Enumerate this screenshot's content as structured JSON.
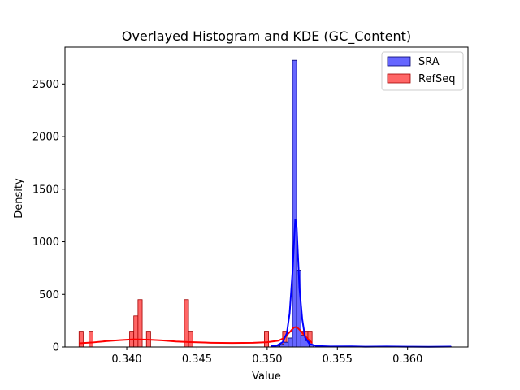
{
  "chart_data": {
    "type": "histogram",
    "title": "Overlayed Histogram and KDE (GC_Content)",
    "xlabel": "Value",
    "ylabel": "Density",
    "xlim": [
      0.3356,
      0.3643
    ],
    "ylim": [
      0,
      2850
    ],
    "x_ticks": [
      0.34,
      0.345,
      0.35,
      0.355,
      0.36
    ],
    "x_tick_labels": [
      "0.340",
      "0.345",
      "0.350",
      "0.355",
      "0.360"
    ],
    "y_ticks": [
      0,
      500,
      1000,
      1500,
      2000,
      2500
    ],
    "y_tick_labels": [
      "0",
      "500",
      "1000",
      "1500",
      "2000",
      "2500"
    ],
    "grid": false,
    "legend_position": "top-right",
    "series": [
      {
        "name": "SRA",
        "fill_color": "#6666ff",
        "edge_color": "#00006e",
        "kde_color": "#0000ff",
        "bins": [
          {
            "x0": 0.3503,
            "x1": 0.3506,
            "height": 20
          },
          {
            "x0": 0.3506,
            "x1": 0.3509,
            "height": 10
          },
          {
            "x0": 0.3509,
            "x1": 0.3512,
            "height": 25
          },
          {
            "x0": 0.3512,
            "x1": 0.3515,
            "height": 45
          },
          {
            "x0": 0.3515,
            "x1": 0.3518,
            "height": 85
          },
          {
            "x0": 0.3518,
            "x1": 0.3521,
            "height": 2725
          },
          {
            "x0": 0.3521,
            "x1": 0.3524,
            "height": 730
          },
          {
            "x0": 0.3524,
            "x1": 0.3527,
            "height": 110
          },
          {
            "x0": 0.3527,
            "x1": 0.353,
            "height": 60
          },
          {
            "x0": 0.353,
            "x1": 0.3533,
            "height": 20
          },
          {
            "x0": 0.356,
            "x1": 0.3563,
            "height": 6
          },
          {
            "x0": 0.3583,
            "x1": 0.3586,
            "height": 5
          },
          {
            "x0": 0.3628,
            "x1": 0.3631,
            "height": 5
          }
        ],
        "kde": [
          [
            0.3503,
            6
          ],
          [
            0.3507,
            15
          ],
          [
            0.3511,
            45
          ],
          [
            0.3514,
            130
          ],
          [
            0.3516,
            320
          ],
          [
            0.3518,
            700
          ],
          [
            0.3519,
            960
          ],
          [
            0.352,
            1215
          ],
          [
            0.3521,
            1140
          ],
          [
            0.3522,
            850
          ],
          [
            0.3523,
            560
          ],
          [
            0.3525,
            260
          ],
          [
            0.3527,
            90
          ],
          [
            0.353,
            30
          ],
          [
            0.3535,
            10
          ],
          [
            0.3545,
            5
          ],
          [
            0.356,
            6
          ],
          [
            0.357,
            3
          ],
          [
            0.3585,
            5
          ],
          [
            0.36,
            3
          ],
          [
            0.3615,
            2
          ],
          [
            0.3631,
            4
          ]
        ]
      },
      {
        "name": "RefSeq",
        "fill_color": "#ff6666",
        "edge_color": "#a40000",
        "kde_color": "#ff0000",
        "bins": [
          {
            "x0": 0.3366,
            "x1": 0.3369,
            "height": 150
          },
          {
            "x0": 0.3373,
            "x1": 0.3376,
            "height": 150
          },
          {
            "x0": 0.3402,
            "x1": 0.3405,
            "height": 150
          },
          {
            "x0": 0.3405,
            "x1": 0.3408,
            "height": 295
          },
          {
            "x0": 0.3408,
            "x1": 0.3411,
            "height": 450
          },
          {
            "x0": 0.3414,
            "x1": 0.3417,
            "height": 150
          },
          {
            "x0": 0.3441,
            "x1": 0.3444,
            "height": 450
          },
          {
            "x0": 0.3444,
            "x1": 0.3447,
            "height": 150
          },
          {
            "x0": 0.3498,
            "x1": 0.3501,
            "height": 150
          },
          {
            "x0": 0.3511,
            "x1": 0.3514,
            "height": 150
          },
          {
            "x0": 0.3517,
            "x1": 0.352,
            "height": 85
          },
          {
            "x0": 0.352,
            "x1": 0.3523,
            "height": 450
          },
          {
            "x0": 0.3523,
            "x1": 0.3526,
            "height": 150
          },
          {
            "x0": 0.3526,
            "x1": 0.3529,
            "height": 150
          },
          {
            "x0": 0.3529,
            "x1": 0.3532,
            "height": 150
          }
        ],
        "kde": [
          [
            0.3366,
            35
          ],
          [
            0.3375,
            42
          ],
          [
            0.3385,
            55
          ],
          [
            0.3395,
            65
          ],
          [
            0.3405,
            72
          ],
          [
            0.3415,
            70
          ],
          [
            0.3425,
            63
          ],
          [
            0.3435,
            52
          ],
          [
            0.3445,
            46
          ],
          [
            0.346,
            40
          ],
          [
            0.3475,
            38
          ],
          [
            0.349,
            40
          ],
          [
            0.35,
            45
          ],
          [
            0.3508,
            60
          ],
          [
            0.3512,
            85
          ],
          [
            0.3516,
            140
          ],
          [
            0.3519,
            185
          ],
          [
            0.3521,
            190
          ],
          [
            0.3523,
            165
          ],
          [
            0.3526,
            120
          ],
          [
            0.3529,
            75
          ],
          [
            0.3532,
            40
          ]
        ]
      }
    ]
  }
}
